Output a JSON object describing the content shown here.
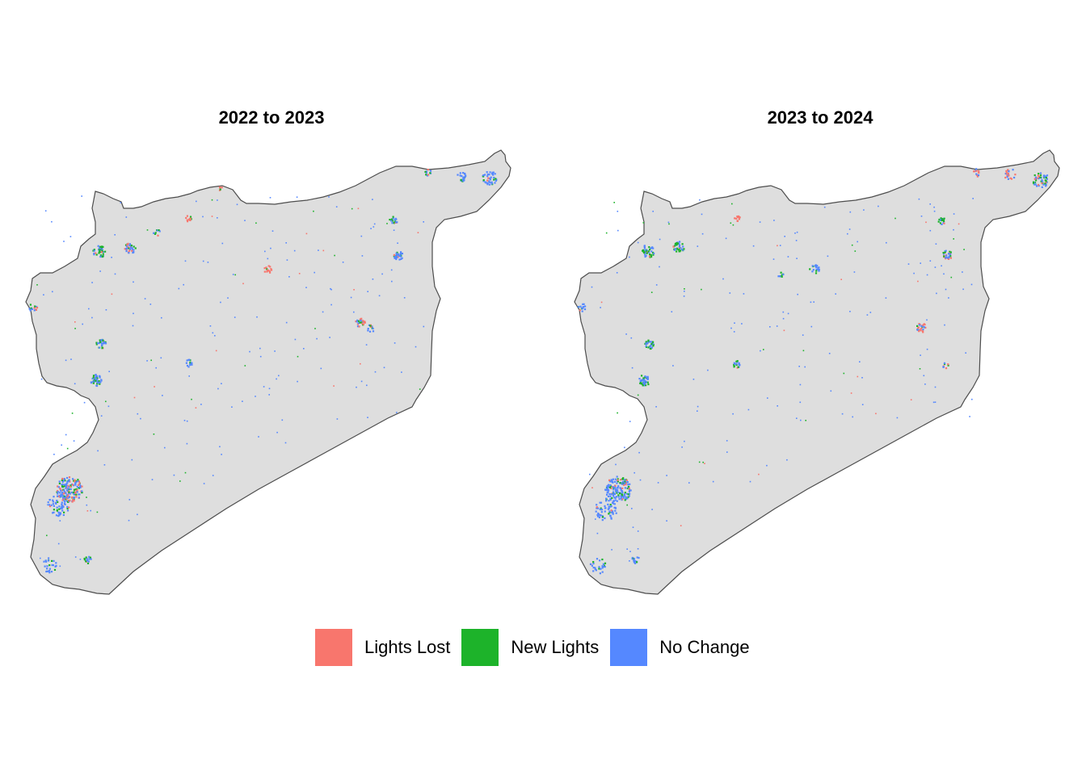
{
  "panels": [
    {
      "title": "2022 to 2023"
    },
    {
      "title": "2023 to 2024"
    }
  ],
  "legend": {
    "items": [
      {
        "label": "Lights Lost",
        "color": "#F8766D"
      },
      {
        "label": "New Lights",
        "color": "#1DB32A"
      },
      {
        "label": "No Change",
        "color": "#5588FF"
      }
    ]
  },
  "colors": {
    "country_fill": "#DEDEDE",
    "country_border": "#4D4D4D"
  }
}
